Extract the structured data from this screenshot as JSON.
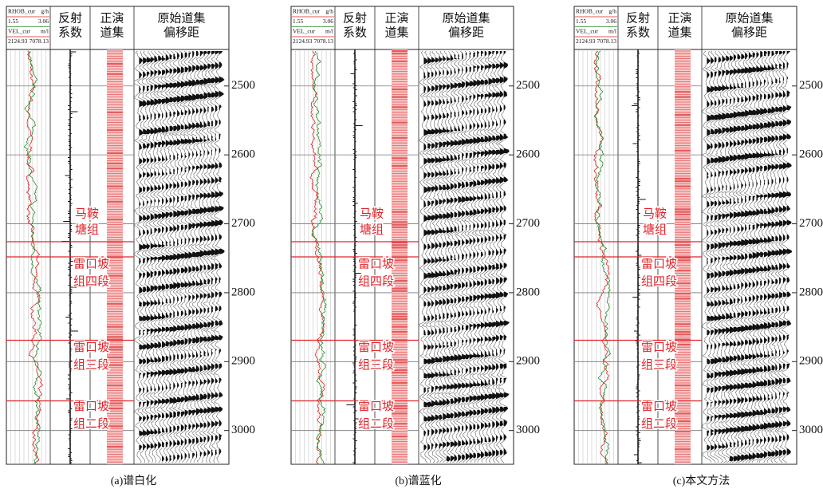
{
  "track_header": {
    "log_lines": [
      [
        "RHOB_cur",
        "g/h"
      ],
      [
        "1.55",
        "3.06"
      ],
      [
        "VEL_cur",
        "m/l"
      ],
      [
        "2124.93",
        "7078.13"
      ]
    ],
    "reflectivity": [
      "反射",
      "系数"
    ],
    "synthetic": [
      "正演",
      "道集"
    ],
    "gather": [
      "原始道集",
      "偏移距"
    ]
  },
  "depth_lim": [
    2447,
    3049
  ],
  "depth_ticks": [
    2500,
    2600,
    2700,
    2800,
    2900,
    3000
  ],
  "boundaries": [
    2726,
    2748,
    2869,
    2957
  ],
  "formations": [
    [
      "马鞍",
      "塘组"
    ],
    [
      "雷口坡",
      "组四段"
    ],
    [
      "雷口坡",
      "组三段"
    ],
    [
      "雷口坡",
      "组二段"
    ]
  ],
  "panels": [
    {
      "caption": "(a)谱白化"
    },
    {
      "caption": "(b)谱蓝化"
    },
    {
      "caption": "(c)本文方法"
    }
  ]
}
